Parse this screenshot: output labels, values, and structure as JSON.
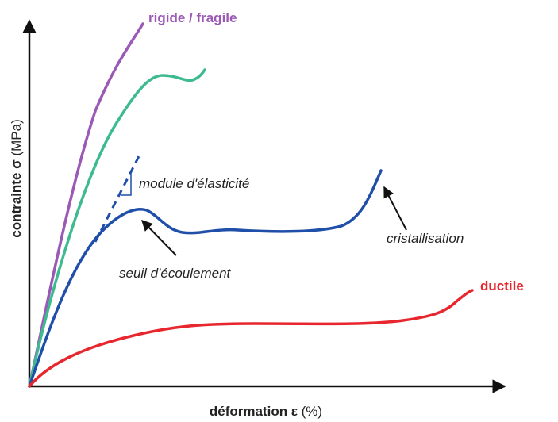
{
  "axes": {
    "x_label": "déformation ε",
    "x_unit": "(%)",
    "y_label": "contrainte σ",
    "y_unit": "(MPa)"
  },
  "curves": [
    {
      "label": "rigide / fragile"
    },
    {
      "label": "ductile"
    }
  ],
  "annotations": [
    "module d'élasticité",
    "seuil d'écoulement",
    "cristallisation"
  ]
}
